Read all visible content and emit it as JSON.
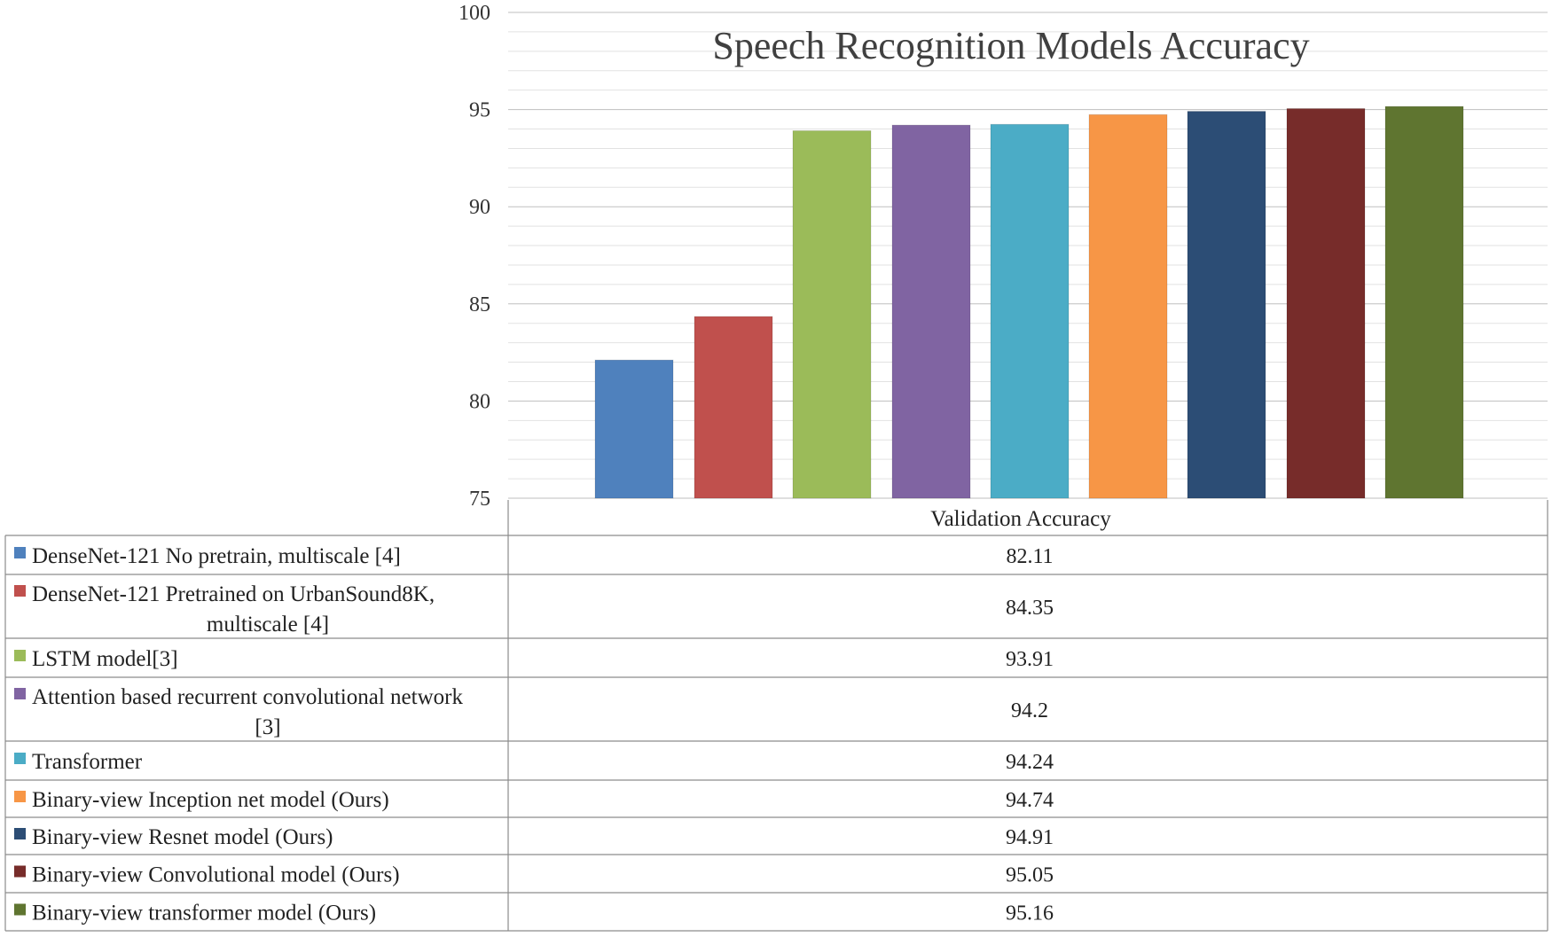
{
  "chart_data": {
    "type": "bar",
    "title": "Speech Recognition Models Accuracy",
    "xlabel": "",
    "ylabel": "",
    "ylim": [
      75,
      100
    ],
    "yticks": [
      75,
      80,
      85,
      90,
      95,
      100
    ],
    "grid": true,
    "legend_placement": "data-table-left",
    "table_header": "Validation Accuracy",
    "categories": [
      {
        "lines": [
          "DenseNet-121 No pretrain, multiscale [4]"
        ],
        "value": 82.11,
        "value_label": "82.11",
        "color": "#4F81BD"
      },
      {
        "lines": [
          "DenseNet-121 Pretrained on UrbanSound8K,",
          "multiscale [4]"
        ],
        "value": 84.35,
        "value_label": "84.35",
        "color": "#C0504D"
      },
      {
        "lines": [
          "LSTM model[3]"
        ],
        "value": 93.91,
        "value_label": "93.91",
        "color": "#9BBB59"
      },
      {
        "lines": [
          "Attention based recurrent convolutional network",
          "[3]"
        ],
        "value": 94.2,
        "value_label": "94.2",
        "color": "#8064A2"
      },
      {
        "lines": [
          "Transformer"
        ],
        "value": 94.24,
        "value_label": "94.24",
        "color": "#4BACC6"
      },
      {
        "lines": [
          "Binary-view Inception net model (Ours)"
        ],
        "value": 94.74,
        "value_label": "94.74",
        "color": "#F79646"
      },
      {
        "lines": [
          "Binary-view Resnet model (Ours)"
        ],
        "value": 94.91,
        "value_label": "94.91",
        "color": "#2C4D75"
      },
      {
        "lines": [
          "Binary-view Convolutional model (Ours)"
        ],
        "value": 95.05,
        "value_label": "95.05",
        "color": "#772C2A"
      },
      {
        "lines": [
          "Binary-view transformer model (Ours)"
        ],
        "value": 95.16,
        "value_label": "95.16",
        "color": "#5F7530"
      }
    ]
  }
}
